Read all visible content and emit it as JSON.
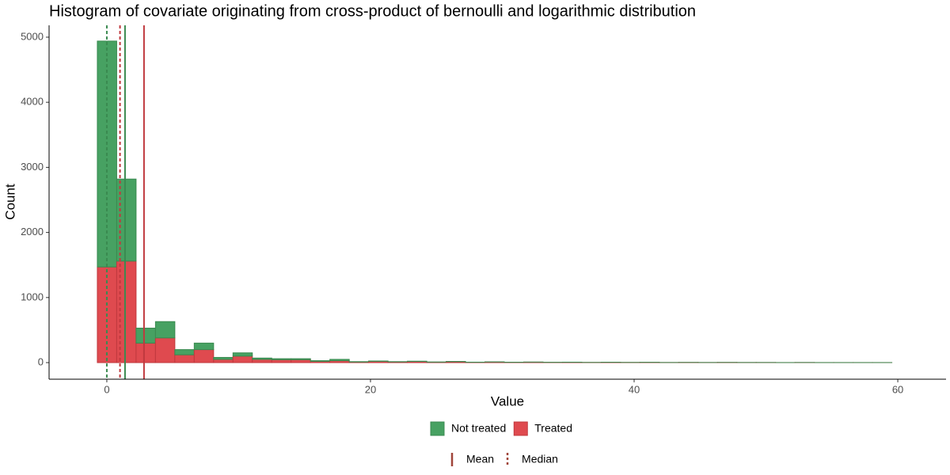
{
  "chart_data": {
    "type": "histogram",
    "stacked": true,
    "title": "Histogram of covariate originating from cross-product of bernoulli and logarithmic distribution",
    "x_label": "Value",
    "y_label": "Count",
    "bins": [
      -0.72,
      0.75,
      2.22,
      3.69,
      5.16,
      6.63,
      8.1,
      9.57,
      11.04,
      12.51,
      13.98,
      15.45,
      16.92,
      18.39,
      19.86,
      21.33,
      22.8,
      24.27,
      25.74,
      27.21,
      28.68,
      30.15,
      31.62,
      33.09,
      34.56,
      36.03,
      37.5,
      38.97,
      40.44,
      41.91,
      43.38,
      44.85,
      46.32,
      47.79,
      49.26,
      50.73,
      52.2,
      53.67,
      55.14,
      56.61,
      58.08,
      59.55
    ],
    "series": [
      {
        "name": "Not treated",
        "color": "#47a162",
        "edge": "#3a8a50",
        "values": [
          3470,
          1260,
          230,
          250,
          80,
          100,
          30,
          50,
          20,
          15,
          15,
          10,
          20,
          5,
          5,
          3,
          4,
          2,
          3,
          1,
          2,
          1,
          1,
          1,
          1,
          0,
          1,
          0,
          1,
          0,
          0,
          0,
          0,
          0,
          0,
          0,
          0,
          0,
          0,
          0,
          0
        ]
      },
      {
        "name": "Treated",
        "color": "#df4a4f",
        "edge": "#c0393e",
        "values": [
          1470,
          1560,
          300,
          380,
          120,
          200,
          50,
          100,
          50,
          45,
          45,
          20,
          30,
          10,
          20,
          12,
          18,
          8,
          15,
          6,
          10,
          5,
          8,
          4,
          6,
          3,
          5,
          3,
          4,
          2,
          3,
          2,
          3,
          2,
          2,
          1,
          2,
          1,
          1,
          1,
          1
        ]
      }
    ],
    "reference_lines": [
      {
        "name": "Mean",
        "dashed": false,
        "values": [
          1.38,
          2.82
        ]
      },
      {
        "name": "Median",
        "dashed": true,
        "values": [
          0,
          1.0
        ]
      }
    ],
    "reference_legend_color": "#a0453a",
    "xlim": [
      -4.38,
      63.66
    ],
    "xticks": [
      0,
      20,
      40,
      60
    ],
    "ylim": [
      -255,
      5182
    ],
    "yticks": [
      0,
      1000,
      2000,
      3000,
      4000,
      5000
    ],
    "grid": false
  }
}
